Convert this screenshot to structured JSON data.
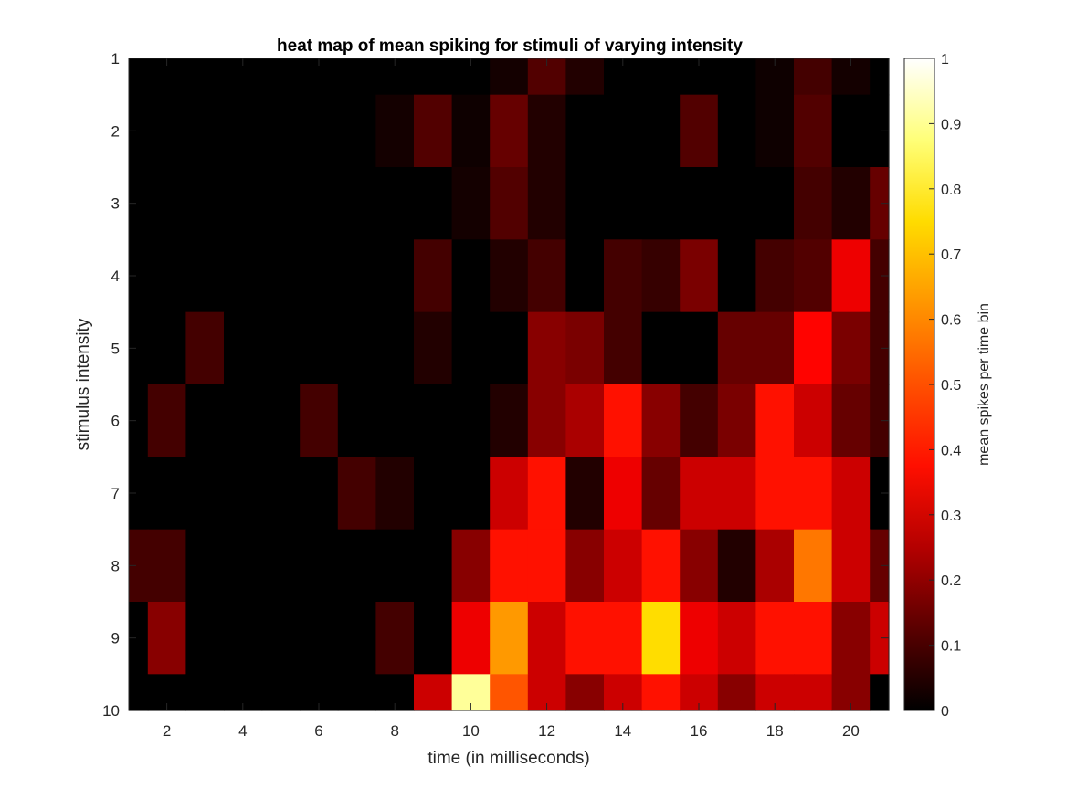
{
  "chart_data": {
    "type": "heatmap",
    "title": "heat map of mean spiking for stimuli of varying intensity",
    "xlabel": "time (in milliseconds)",
    "ylabel": "stimulus intensity",
    "x": [
      1,
      2,
      3,
      4,
      5,
      6,
      7,
      8,
      9,
      10,
      11,
      12,
      13,
      14,
      15,
      16,
      17,
      18,
      19,
      20,
      21
    ],
    "y": [
      1,
      2,
      3,
      4,
      5,
      6,
      7,
      8,
      9,
      10
    ],
    "xlim": [
      1,
      21
    ],
    "ylim": [
      1,
      10
    ],
    "y_direction": "reverse",
    "xticks": [
      "2",
      "4",
      "6",
      "8",
      "10",
      "12",
      "14",
      "16",
      "18",
      "20"
    ],
    "yticks": [
      "1",
      "2",
      "3",
      "4",
      "5",
      "6",
      "7",
      "8",
      "9",
      "10"
    ],
    "colormap": "hot",
    "colorbar": {
      "label": "mean spikes per time bin",
      "range": [
        0,
        1
      ],
      "ticks": [
        "0",
        "0.1",
        "0.2",
        "0.3",
        "0.4",
        "0.5",
        "0.6",
        "0.7",
        "0.8",
        "0.9",
        "1"
      ]
    },
    "values": [
      [
        0.0,
        0.0,
        0.0,
        0.0,
        0.0,
        0.0,
        0.0,
        0.0,
        0.0,
        0.0,
        0.03,
        0.12,
        0.05,
        0.0,
        0.0,
        0.0,
        0.0,
        0.02,
        0.1,
        0.03,
        0.0
      ],
      [
        0.0,
        0.0,
        0.0,
        0.0,
        0.0,
        0.0,
        0.0,
        0.03,
        0.12,
        0.02,
        0.15,
        0.05,
        0.0,
        0.0,
        0.0,
        0.12,
        0.0,
        0.02,
        0.12,
        0.0,
        0.0
      ],
      [
        0.0,
        0.0,
        0.0,
        0.0,
        0.0,
        0.0,
        0.0,
        0.0,
        0.0,
        0.03,
        0.12,
        0.05,
        0.0,
        0.0,
        0.0,
        0.0,
        0.0,
        0.0,
        0.1,
        0.05,
        0.15
      ],
      [
        0.0,
        0.0,
        0.0,
        0.0,
        0.0,
        0.0,
        0.0,
        0.0,
        0.1,
        0.0,
        0.05,
        0.1,
        0.0,
        0.1,
        0.08,
        0.18,
        0.0,
        0.1,
        0.12,
        0.35,
        0.1
      ],
      [
        0.0,
        0.0,
        0.1,
        0.0,
        0.0,
        0.0,
        0.0,
        0.0,
        0.05,
        0.0,
        0.0,
        0.2,
        0.18,
        0.1,
        0.0,
        0.0,
        0.15,
        0.15,
        0.38,
        0.18,
        0.1
      ],
      [
        0.0,
        0.1,
        0.0,
        0.0,
        0.0,
        0.1,
        0.0,
        0.0,
        0.0,
        0.0,
        0.05,
        0.2,
        0.25,
        0.4,
        0.2,
        0.1,
        0.18,
        0.4,
        0.3,
        0.15,
        0.1
      ],
      [
        0.0,
        0.0,
        0.0,
        0.0,
        0.0,
        0.0,
        0.1,
        0.05,
        0.0,
        0.0,
        0.3,
        0.4,
        0.05,
        0.35,
        0.15,
        0.3,
        0.3,
        0.4,
        0.4,
        0.3,
        0.0
      ],
      [
        0.1,
        0.1,
        0.0,
        0.0,
        0.0,
        0.0,
        0.0,
        0.0,
        0.0,
        0.2,
        0.4,
        0.4,
        0.2,
        0.3,
        0.4,
        0.2,
        0.05,
        0.25,
        0.55,
        0.3,
        0.15
      ],
      [
        0.0,
        0.2,
        0.0,
        0.0,
        0.0,
        0.0,
        0.0,
        0.1,
        0.0,
        0.35,
        0.6,
        0.3,
        0.4,
        0.4,
        0.7,
        0.35,
        0.3,
        0.4,
        0.4,
        0.2,
        0.3
      ],
      [
        0.0,
        0.0,
        0.0,
        0.0,
        0.0,
        0.0,
        0.0,
        0.0,
        0.3,
        0.9,
        0.5,
        0.3,
        0.2,
        0.3,
        0.4,
        0.3,
        0.2,
        0.3,
        0.3,
        0.2,
        0.0
      ]
    ]
  }
}
